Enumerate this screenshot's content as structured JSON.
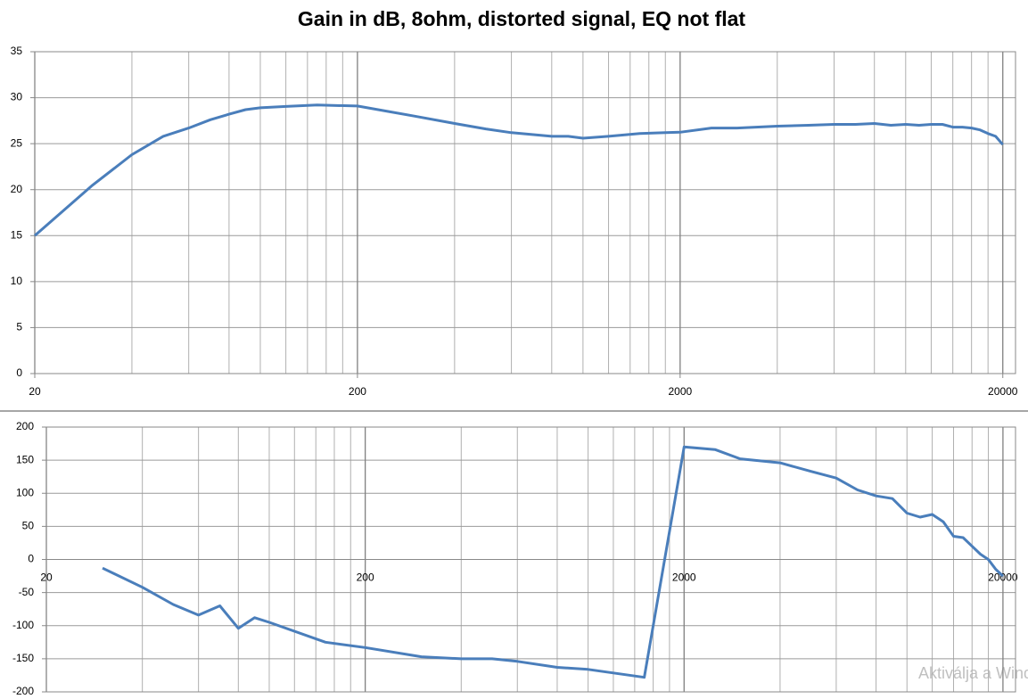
{
  "chart_data": [
    {
      "type": "line",
      "title": "Gain in dB, 8ohm, distorted signal, EQ not flat",
      "log_x": true,
      "grid": true,
      "minor_grid": true,
      "color": "#4a7ebb",
      "x": [
        20,
        30,
        40,
        50,
        60,
        70,
        80,
        90,
        100,
        120,
        150,
        200,
        300,
        400,
        500,
        600,
        800,
        900,
        1000,
        1200,
        1500,
        1800,
        2000,
        2500,
        3000,
        4000,
        5000,
        6000,
        7000,
        8000,
        9000,
        10000,
        11000,
        12000,
        13000,
        14000,
        15000,
        16000,
        17000,
        18000,
        19000,
        20000
      ],
      "values": [
        15,
        20.4,
        23.8,
        25.8,
        26.7,
        27.6,
        28.2,
        28.7,
        28.9,
        29.05,
        29.2,
        29.1,
        28,
        27.2,
        26.6,
        26.2,
        25.8,
        25.8,
        25.6,
        25.8,
        26.1,
        26.2,
        26.25,
        26.7,
        26.7,
        26.9,
        27,
        27.1,
        27.1,
        27.2,
        27,
        27.1,
        27,
        27.1,
        27.1,
        26.8,
        26.8,
        26.7,
        26.5,
        26.1,
        25.8,
        24.9
      ],
      "xlim": [
        20,
        21900
      ],
      "xticks": [
        20,
        200,
        2000,
        20000
      ],
      "ylim": [
        0,
        35
      ],
      "yticks": [
        0,
        5,
        10,
        15,
        20,
        25,
        30,
        35
      ]
    },
    {
      "type": "line",
      "log_x": true,
      "grid": true,
      "minor_grid": true,
      "color": "#4a7ebb",
      "x": [
        30,
        40,
        50,
        60,
        70,
        80,
        90,
        100,
        150,
        200,
        300,
        400,
        500,
        600,
        800,
        1000,
        1500,
        2000,
        2500,
        3000,
        4000,
        5000,
        6000,
        7000,
        8000,
        9000,
        10000,
        11000,
        12000,
        13000,
        14000,
        15000,
        16000,
        17000,
        18000,
        19000,
        20000
      ],
      "values": [
        -13,
        -42,
        -68,
        -84,
        -70,
        -104,
        -88,
        -95,
        -125,
        -133,
        -147,
        -150,
        -150,
        -154,
        -163,
        -166,
        -178,
        170,
        166,
        152,
        146,
        133,
        123,
        105,
        96,
        92,
        70,
        64,
        68,
        57,
        35,
        33,
        20,
        8,
        0,
        -15,
        -25
      ],
      "xlim": [
        20,
        21900
      ],
      "xticks": [
        20,
        200,
        2000,
        20000
      ],
      "ylim": [
        -200,
        200
      ],
      "yticks": [
        -200,
        -150,
        -100,
        -50,
        0,
        50,
        100,
        150,
        200
      ]
    }
  ],
  "watermark": "Aktiválja a Windows"
}
